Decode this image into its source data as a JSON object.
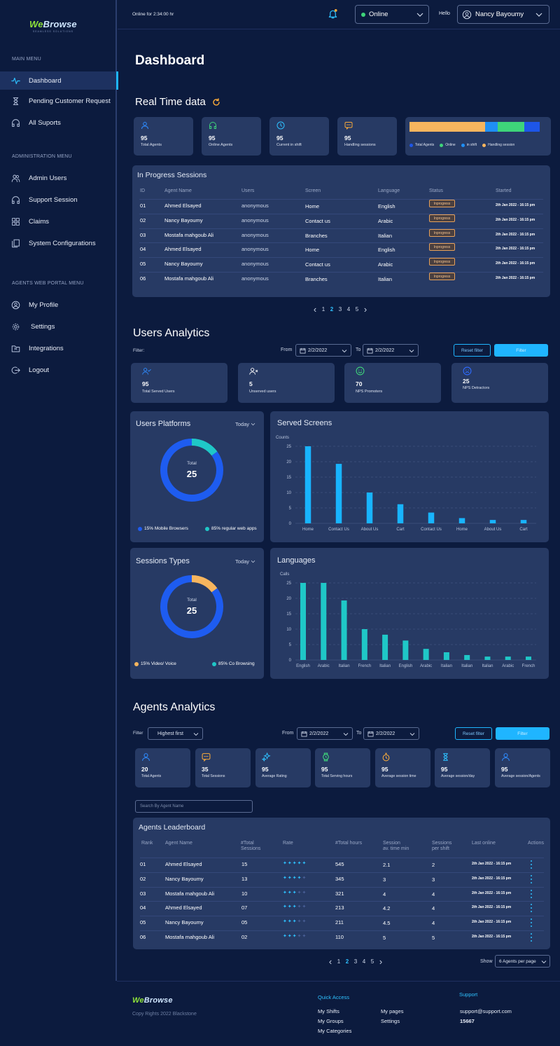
{
  "brand": {
    "name_a": "We",
    "name_b": "Browse",
    "tagline": "SEAMLESS SOLUTIONS"
  },
  "sidebar": {
    "main_heading": "MAIN MENU",
    "main": [
      {
        "label": "Dashboard"
      },
      {
        "label": "Pending Customer Request"
      },
      {
        "label": "All Suports"
      }
    ],
    "admin_heading": "ADMINISTRATION MENU",
    "admin": [
      {
        "label": "Admin Users"
      },
      {
        "label": "Support Session"
      },
      {
        "label": "Claims"
      },
      {
        "label": "System Configurations"
      }
    ],
    "agents_heading": "AGENTS WEB PORTAL MENU",
    "agents": [
      {
        "label": "My Profile"
      },
      {
        "label": "Settings"
      },
      {
        "label": "Integrations"
      },
      {
        "label": "Logout"
      }
    ]
  },
  "topbar": {
    "online_for": "Online for 2:34:00 hr",
    "status": "Online",
    "hello": "Hello",
    "user": "Nancy Bayoumy"
  },
  "page_title": "Dashboard",
  "realtime": {
    "title": "Real Time data",
    "stats": [
      {
        "value": "95",
        "label": "Total Agents"
      },
      {
        "value": "95",
        "label": "Online Agents"
      },
      {
        "value": "95",
        "label": "Current in shift"
      },
      {
        "value": "95",
        "label": "Handling sessions"
      }
    ],
    "bar": {
      "segments": [
        {
          "share": 0.58,
          "color": "#f7b55e"
        },
        {
          "share": 0.1,
          "color": "#1f8ff5"
        },
        {
          "share": 0.2,
          "color": "#3ed47a"
        },
        {
          "share": 0.12,
          "color": "#1e56e8"
        }
      ],
      "legend": [
        {
          "label": "Total Agents",
          "color": "#1e56e8"
        },
        {
          "label": "Online",
          "color": "#3ed47a"
        },
        {
          "label": "in shift",
          "color": "#1f8ff5"
        },
        {
          "label": "Handling session",
          "color": "#f7b55e"
        }
      ]
    }
  },
  "sessions": {
    "title": "In Progress Sessions",
    "headers": [
      "ID",
      "Agent Name",
      "Users",
      "Screen",
      "Language",
      "Status",
      "Started"
    ],
    "rows": [
      {
        "id": "01",
        "agent": "Ahmed Elsayed",
        "user": "anonymous",
        "screen": "Home",
        "lang": "English",
        "status": "Inprogress",
        "started": "2th Jan 2022 - 16:15 pm"
      },
      {
        "id": "02",
        "agent": "Nancy Bayoumy",
        "user": "anonymous",
        "screen": "Contact us",
        "lang": "Arabic",
        "status": "Inprogress",
        "started": "2th Jan 2022 - 16:15 pm"
      },
      {
        "id": "03",
        "agent": "Mostafa mahgoub Ali",
        "user": "anonymous",
        "screen": "Branches",
        "lang": "Italian",
        "status": "Inprogress",
        "started": "2th Jan 2022 - 16:15 pm"
      },
      {
        "id": "04",
        "agent": "Ahmed Elsayed",
        "user": "anonymous",
        "screen": "Home",
        "lang": "English",
        "status": "Inprogress",
        "started": "2th Jan 2022 - 16:15 pm"
      },
      {
        "id": "05",
        "agent": "Nancy Bayoumy",
        "user": "anonymous",
        "screen": "Contact us",
        "lang": "Arabic",
        "status": "Inprogress",
        "started": "2th Jan 2022 - 16:15 pm"
      },
      {
        "id": "06",
        "agent": "Mostafa mahgoub Ali",
        "user": "anonymous",
        "screen": "Branches",
        "lang": "Italian",
        "status": "Inprogress",
        "started": "2th Jan 2022 - 16:15 pm"
      }
    ],
    "pages": [
      "1",
      "2",
      "3",
      "4",
      "5"
    ],
    "current_page": "2"
  },
  "users_analytics": {
    "title": "Users Analytics",
    "filter_label": "Filter:",
    "from": "From",
    "to": "To",
    "from_date": "2/2/2022",
    "to_date": "2/2/2022",
    "reset": "Reset filter",
    "filter": "Filter",
    "stats": [
      {
        "value": "95",
        "label": "Total Served Users"
      },
      {
        "value": "5",
        "label": "Unserved users"
      },
      {
        "value": "70",
        "label": "NPS Promoters"
      },
      {
        "value": "25",
        "label": "NPS Detractors"
      }
    ]
  },
  "platforms": {
    "title": "Users Platforms",
    "period": "Today",
    "total_label": "Total",
    "total": "25",
    "legend": [
      {
        "text": "15%  Mobile Browsers",
        "color": "#1e5cf0"
      },
      {
        "text": "85% regular web apps",
        "color": "#1fc7c7"
      }
    ],
    "chart_data": {
      "type": "pie",
      "labels": [
        "Mobile Browsers",
        "regular web apps"
      ],
      "values": [
        15,
        85
      ]
    }
  },
  "screens": {
    "title": "Served Screens",
    "chart_data": {
      "type": "bar",
      "ylabel": "Counts",
      "ylim": [
        0,
        25
      ],
      "yticks": [
        0,
        5,
        10,
        15,
        20,
        25
      ],
      "categories": [
        "Home",
        "Contact Us",
        "About Us",
        "Cart",
        "Contact Us",
        "Home",
        "About Us",
        "Cart"
      ],
      "values": [
        25,
        19.3,
        10,
        6.2,
        3.5,
        1.7,
        1.1,
        1.1
      ],
      "color": "#18b4ff"
    }
  },
  "sessions_types": {
    "title": "Sessions Types",
    "period": "Today",
    "total_label": "Total",
    "total": "25",
    "legend": [
      {
        "text": "15%  Video/ Voice",
        "color": "#f7b55e"
      },
      {
        "text": "85% Co Browsing",
        "color": "#1fc7c7"
      }
    ],
    "chart_data": {
      "type": "pie",
      "labels": [
        "Video/ Voice",
        "Co Browsing"
      ],
      "values": [
        15,
        85
      ]
    }
  },
  "languages": {
    "title": "Languages",
    "chart_data": {
      "type": "bar",
      "ylabel": "Calls",
      "ylim": [
        0,
        25
      ],
      "yticks": [
        0,
        5,
        10,
        15,
        20,
        25
      ],
      "categories": [
        "English",
        "Arabic",
        "Italian",
        "French",
        "Italian",
        "English",
        "Arabic",
        "Italian",
        "Italian",
        "Italian",
        "Arabic",
        "French"
      ],
      "values": [
        25,
        25,
        19.3,
        10,
        8.2,
        6.3,
        3.6,
        2.5,
        1.6,
        1.1,
        1.1,
        1.1
      ],
      "color": "#1fc7c7"
    }
  },
  "agents_analytics": {
    "title": "Agents Analytics",
    "filter_label": "Filter",
    "sort": "Highest first",
    "from": "From",
    "to": "To",
    "from_date": "2/2/2022",
    "to_date": "2/2/2022",
    "reset": "Reset filter",
    "filter": "Filter",
    "stats": [
      {
        "value": "20",
        "label": "Total Agents"
      },
      {
        "value": "35",
        "label": "Total Sessions"
      },
      {
        "value": "95",
        "label": "Average Rating"
      },
      {
        "value": "95",
        "label": "Total Serving hours"
      },
      {
        "value": "95",
        "label": "Average session time"
      },
      {
        "value": "95",
        "label": "Average session/day"
      },
      {
        "value": "95",
        "label": "Average session/Agents"
      }
    ],
    "search_placeholder": "Search By Agent Name"
  },
  "leaderboard": {
    "title": "Agents Leaderboard",
    "headers": {
      "rank": "Rank",
      "name": "Agent Name",
      "sessions": "#Total\nSessions",
      "rate": "Rate",
      "hours": "#Total hours",
      "avg": "Session\nav. time min",
      "shift": "Sessions\nper shift",
      "last": "Last online",
      "actions": "Actions"
    },
    "rows": [
      {
        "rank": "01",
        "name": "Ahmed Elsayed",
        "sessions": "15",
        "rating": 5,
        "hours": "545",
        "avg": "2.1",
        "shift": "2",
        "last": "2th Jan 2022 - 16:15 pm"
      },
      {
        "rank": "02",
        "name": "Nancy Bayoumy",
        "sessions": "13",
        "rating": 4,
        "hours": "345",
        "avg": "3",
        "shift": "3",
        "last": "2th Jan 2022 - 16:15 pm"
      },
      {
        "rank": "03",
        "name": "Mostafa mahgoub Ali",
        "sessions": "10",
        "rating": 3,
        "hours": "321",
        "avg": "4",
        "shift": "4",
        "last": "2th Jan 2022 - 16:15 pm"
      },
      {
        "rank": "04",
        "name": "Ahmed Elsayed",
        "sessions": "07",
        "rating": 3,
        "hours": "213",
        "avg": "4.2",
        "shift": "4",
        "last": "2th Jan 2022 - 16:15 pm"
      },
      {
        "rank": "05",
        "name": "Nancy Bayoumy",
        "sessions": "05",
        "rating": 3,
        "hours": "211",
        "avg": "4.5",
        "shift": "4",
        "last": "2th Jan 2022 - 16:15 pm"
      },
      {
        "rank": "06",
        "name": "Mostafa mahgoub Ali",
        "sessions": "02",
        "rating": 3,
        "hours": "110",
        "avg": "5",
        "shift": "5",
        "last": "2th Jan 2022 - 16:15 pm"
      }
    ],
    "pages": [
      "1",
      "2",
      "3",
      "4",
      "5"
    ],
    "current_page": "2",
    "show_label": "Show",
    "per_page": "6 Agents per page"
  },
  "footer": {
    "copyright": "Copy Rights 2022 Blackstone",
    "quick_title": "Quick Access",
    "quick": [
      "My Shifts",
      "My Groups",
      "My Categories",
      "My pages",
      "Settings"
    ],
    "support_title": "Support",
    "email": "support@support.com",
    "phone": "15667"
  }
}
